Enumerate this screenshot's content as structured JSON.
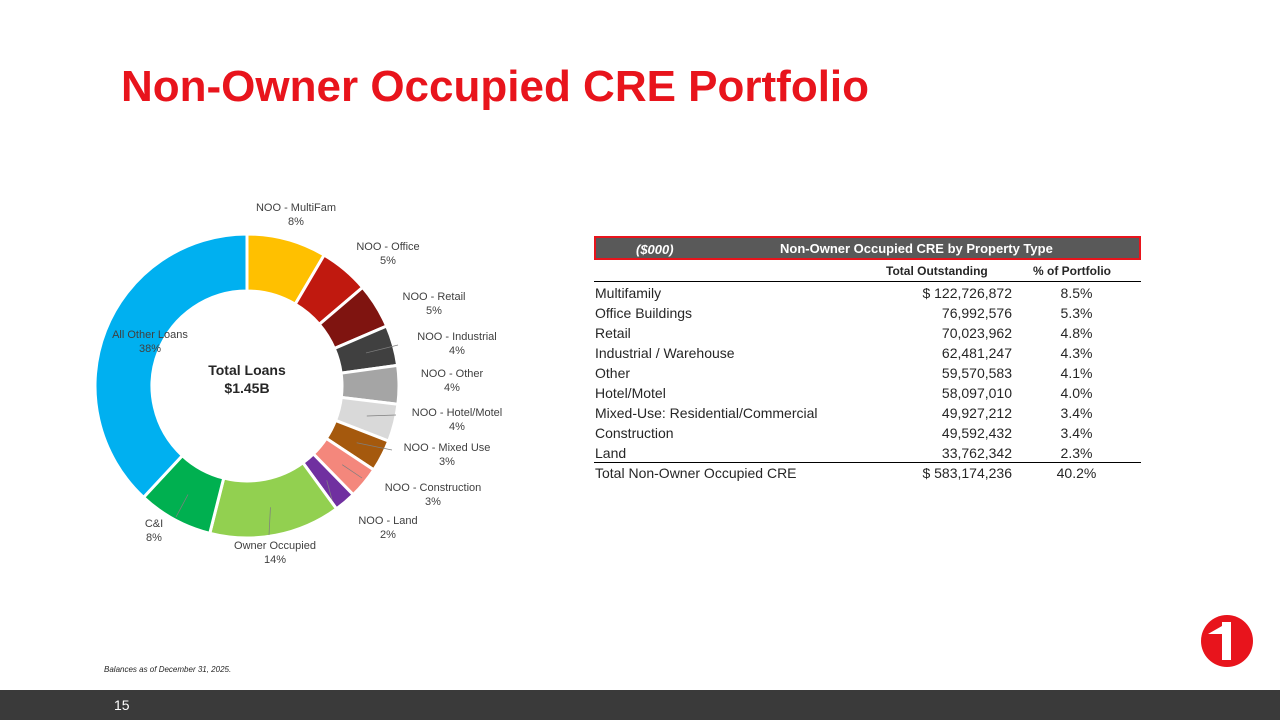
{
  "title": "Non-Owner Occupied CRE Portfolio",
  "chart_data": {
    "type": "pie",
    "donut": true,
    "center_label": [
      "Total Loans",
      "$1.45B"
    ],
    "slices": [
      {
        "name": "NOO - MultiFam",
        "label": "8%",
        "value": 8.5,
        "color": "#ffc000"
      },
      {
        "name": "NOO - Office",
        "label": "5%",
        "value": 5.3,
        "color": "#c0190f"
      },
      {
        "name": "NOO - Retail",
        "label": "5%",
        "value": 4.8,
        "color": "#7f1410"
      },
      {
        "name": "NOO - Industrial",
        "label": "4%",
        "value": 4.3,
        "color": "#404040"
      },
      {
        "name": "NOO - Other",
        "label": "4%",
        "value": 4.1,
        "color": "#a5a5a5"
      },
      {
        "name": "NOO - Hotel/Motel",
        "label": "4%",
        "value": 4.0,
        "color": "#d9d9d9"
      },
      {
        "name": "NOO - Mixed Use",
        "label": "3%",
        "value": 3.4,
        "color": "#a5590d"
      },
      {
        "name": "NOO - Construction",
        "label": "3%",
        "value": 3.4,
        "color": "#f4877c"
      },
      {
        "name": "NOO - Land",
        "label": "2%",
        "value": 2.3,
        "color": "#7030a0"
      },
      {
        "name": "Owner Occupied",
        "label": "14%",
        "value": 14,
        "color": "#92d050"
      },
      {
        "name": "C&I",
        "label": "8%",
        "value": 8,
        "color": "#00b050"
      },
      {
        "name": "All Other Loans",
        "label": "38%",
        "value": 38.2,
        "color": "#00b0f0"
      }
    ]
  },
  "table": {
    "unit": "($000)",
    "title": "Non-Owner Occupied CRE by Property Type",
    "col_total": "Total Outstanding",
    "col_pct": "% of Portfolio",
    "rows": [
      {
        "label": "Multifamily",
        "total": "$ 122,726,872",
        "pct": "8.5%"
      },
      {
        "label": "Office Buildings",
        "total": "76,992,576",
        "pct": "5.3%"
      },
      {
        "label": "Retail",
        "total": "70,023,962",
        "pct": "4.8%"
      },
      {
        "label": "Industrial / Warehouse",
        "total": "62,481,247",
        "pct": "4.3%"
      },
      {
        "label": "Other",
        "total": "59,570,583",
        "pct": "4.1%"
      },
      {
        "label": "Hotel/Motel",
        "total": "58,097,010",
        "pct": "4.0%"
      },
      {
        "label": "Mixed-Use: Residential/Commercial",
        "total": "49,927,212",
        "pct": "3.4%"
      },
      {
        "label": "Construction",
        "total": "49,592,432",
        "pct": "3.4%"
      },
      {
        "label": "Land",
        "total": "33,762,342",
        "pct": "2.3%"
      }
    ],
    "total_row": {
      "label": "Total Non-Owner Occupied CRE",
      "total": "$  583,174,236",
      "pct": "40.2%"
    }
  },
  "footnote": "Balances as of December 31, 2025.",
  "page_number": "15",
  "colors": {
    "accent": "#e8141c",
    "header_bg": "#595959",
    "footer_bg": "#3a3a3a"
  },
  "logo_icon": "company-logo-icon"
}
